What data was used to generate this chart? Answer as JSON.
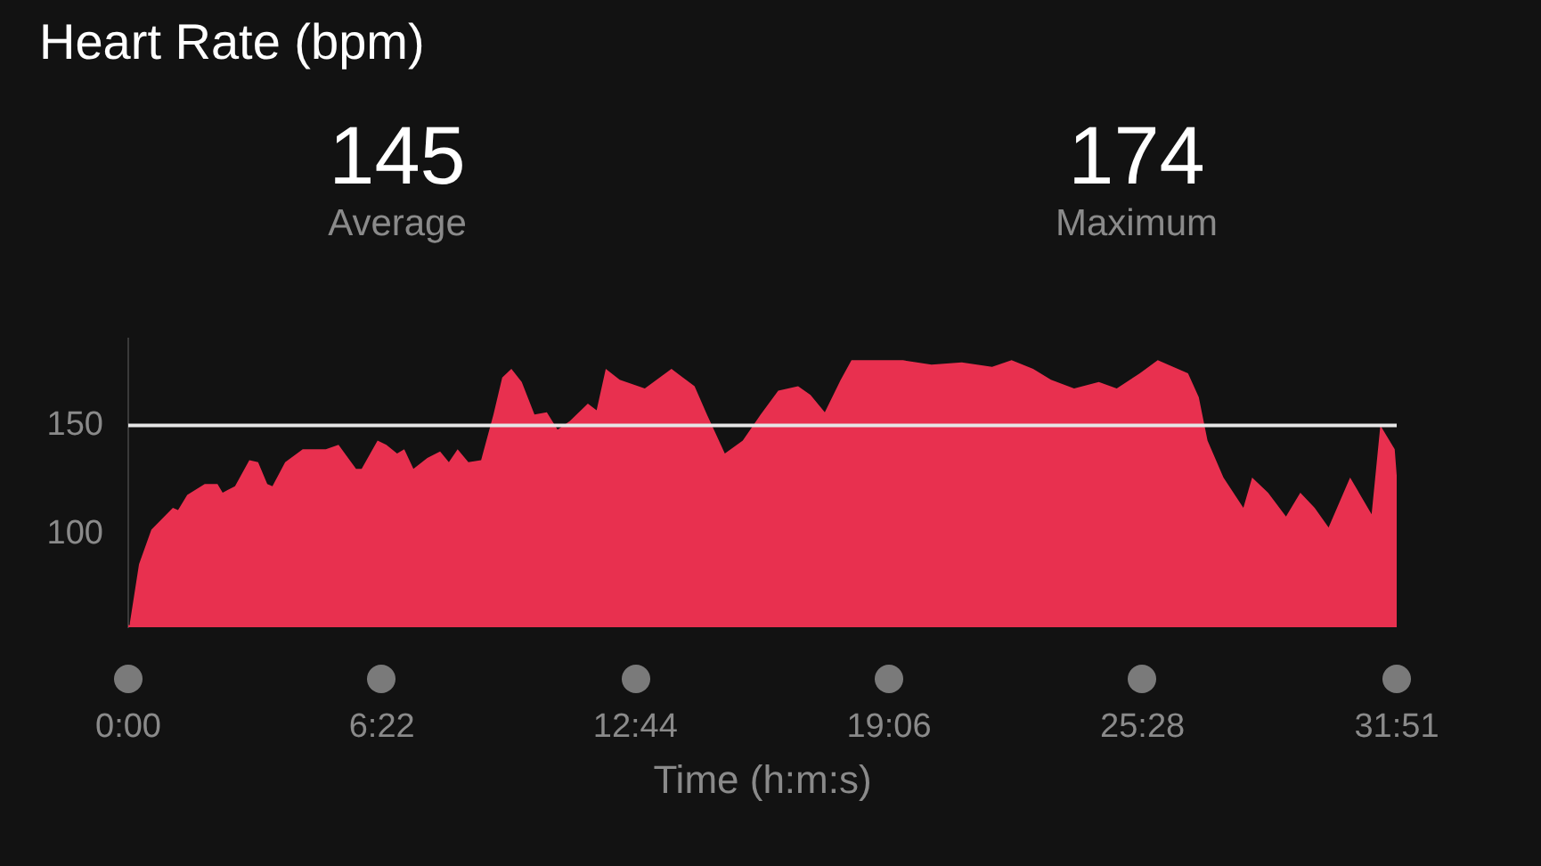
{
  "chart_data": {
    "type": "area",
    "title": "Heart Rate (bpm)",
    "xlabel": "Time (h:m:s)",
    "annotations": [
      "145",
      "Average",
      "174",
      "Maximum"
    ],
    "x": [
      0,
      0.04,
      0.27,
      0.58,
      1.12,
      1.25,
      1.48,
      1.92,
      2.24,
      2.37,
      2.68,
      3.04,
      3.26,
      3.49,
      3.62,
      3.94,
      4.38,
      4.83,
      4.96,
      5.28,
      5.72,
      5.86,
      6.26,
      6.48,
      6.75,
      6.93,
      7.16,
      7.51,
      7.83,
      8.05,
      8.27,
      8.54,
      8.86,
      9.17,
      9.39,
      9.62,
      9.88,
      10.2,
      10.51,
      10.78,
      11.09,
      11.54,
      11.76,
      11.99,
      12.34,
      12.97,
      13.64,
      14.22,
      14.53,
      14.98,
      15.43,
      15.88,
      16.32,
      16.82,
      17.13,
      17.49,
      17.89,
      18.16,
      19.45,
      20.17,
      20.93,
      21.69,
      22.18,
      22.72,
      23.17,
      23.75,
      24.37,
      24.82,
      25.4,
      25.85,
      26.61,
      26.88,
      27.1,
      27.5,
      28.0,
      28.22,
      28.62,
      29.07,
      29.43,
      29.79,
      30.14,
      30.68,
      31.22,
      31.44,
      31.8,
      31.85
    ],
    "series": [
      {
        "color": "#e8304f",
        "values": [
          58,
          59,
          86,
          102,
          112,
          111,
          118,
          123,
          123,
          119,
          122,
          134,
          133,
          123,
          122,
          133,
          139,
          139,
          139,
          141,
          130,
          130,
          143,
          141,
          137,
          139,
          130,
          135,
          138,
          133,
          139,
          133,
          134,
          155,
          172,
          176,
          170,
          155,
          156,
          148,
          152,
          160,
          157,
          176,
          171,
          167,
          176,
          168,
          155,
          137,
          143,
          155,
          166,
          168,
          164,
          156,
          171,
          180,
          180,
          178,
          179,
          177,
          180,
          176,
          171,
          167,
          170,
          167,
          174,
          180,
          174,
          163,
          143,
          126,
          112,
          126,
          119,
          108,
          119,
          112,
          103,
          126,
          109,
          150,
          139,
          127
        ]
      }
    ],
    "xlim": [
      0,
      31.85
    ],
    "xticks": [
      {
        "value": 0,
        "label": "0:00"
      },
      {
        "value": 6.3667,
        "label": "6:22"
      },
      {
        "value": 12.7333,
        "label": "12:44"
      },
      {
        "value": 19.1,
        "label": "19:06"
      },
      {
        "value": 25.4667,
        "label": "25:28"
      },
      {
        "value": 31.85,
        "label": "31:51"
      }
    ],
    "ylim": [
      57,
      190
    ],
    "yticks": [
      100,
      150
    ],
    "ref_lines": [
      {
        "axis": "y",
        "value": 150,
        "color": "#e6e6e6"
      }
    ],
    "legend": false
  }
}
